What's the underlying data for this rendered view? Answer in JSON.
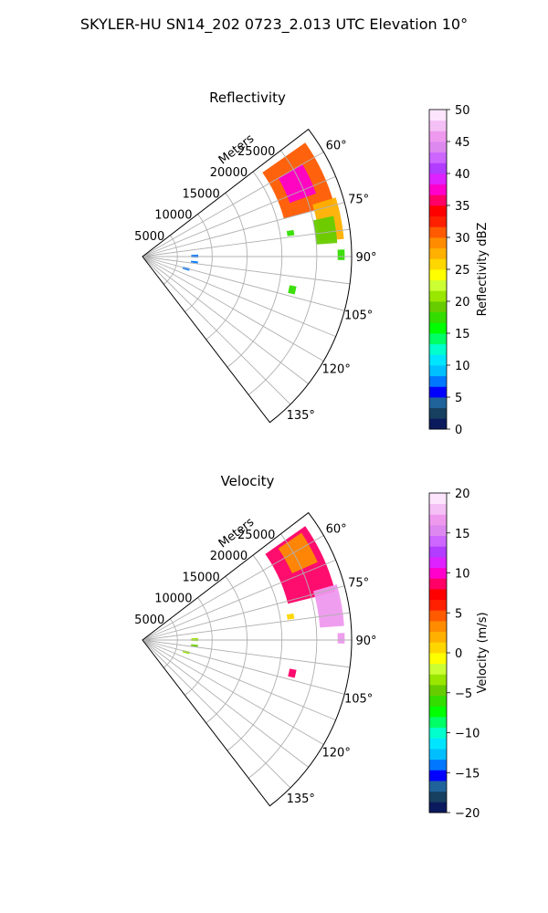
{
  "suptitle": "SKYLER-HU  SN14_202  0723_2.013 UTC Elevation 10°",
  "chart_data": [
    {
      "type": "polar",
      "panel": "reflectivity",
      "title": "Reflectivity",
      "radial_label": "Meters",
      "radial_ticks": [
        5000,
        10000,
        15000,
        20000,
        25000
      ],
      "radial_tick_labels": [
        "5000",
        "10000",
        "15000",
        "20000",
        "25000"
      ],
      "radial_max": 30000,
      "azimuth_range_deg": [
        52.5,
        142.5
      ],
      "azimuth_grid_deg": [
        60,
        67.5,
        75,
        82.5,
        90,
        97.5,
        105,
        112.5,
        120,
        127.5,
        135
      ],
      "azimuth_tick_labels": [
        "60°",
        "75°",
        "90°",
        "105°",
        "120°",
        "135°"
      ],
      "grid": true,
      "colorbar": {
        "label": "Reflectivity dBZ",
        "range": [
          0,
          50
        ],
        "ticks": [
          "0",
          "5",
          "10",
          "15",
          "20",
          "25",
          "30",
          "35",
          "40",
          "45",
          "50"
        ],
        "colors": [
          "#0b1a5c",
          "#173f5f",
          "#20639b",
          "#0000ff",
          "#0077ff",
          "#00bfff",
          "#00e5ff",
          "#00ffcc",
          "#00ff66",
          "#00ff00",
          "#33dd00",
          "#66cc00",
          "#99e600",
          "#ccff33",
          "#ffff00",
          "#ffd700",
          "#ffb000",
          "#ff8c00",
          "#ff5a00",
          "#ff2000",
          "#ff0000",
          "#ff0066",
          "#ff00cc",
          "#dd22ff",
          "#b23cff",
          "#cc66ff",
          "#dd88ee",
          "#ee99ee",
          "#f5c0f5",
          "#fde6fd"
        ]
      },
      "echoes": [
        {
          "az": [
            55,
            75
          ],
          "r": [
            21000,
            28500
          ],
          "dbz": 30
        },
        {
          "az": [
            60,
            70
          ],
          "r": [
            22500,
            26500
          ],
          "dbz": 38
        },
        {
          "az": [
            73,
            85
          ],
          "r": [
            25500,
            29000
          ],
          "dbz": 28
        },
        {
          "az": [
            78,
            86
          ],
          "r": [
            25000,
            28000
          ],
          "dbz": 19
        },
        {
          "az": [
            88,
            91
          ],
          "r": [
            28000,
            29000
          ],
          "dbz": 18
        },
        {
          "az": [
            80,
            82
          ],
          "r": [
            21000,
            22000
          ],
          "dbz": 17
        },
        {
          "az": [
            101,
            104
          ],
          "r": [
            21500,
            22500
          ],
          "dbz": 18
        },
        {
          "az": [
            88,
            91
          ],
          "r": [
            7000,
            8000
          ],
          "dbz": 7
        },
        {
          "az": [
            95,
            97
          ],
          "r": [
            7000,
            8000
          ],
          "dbz": 8
        },
        {
          "az": [
            104,
            107
          ],
          "r": [
            6000,
            7000
          ],
          "dbz": 8
        }
      ]
    },
    {
      "type": "polar",
      "panel": "velocity",
      "title": "Velocity",
      "radial_label": "Meters",
      "radial_ticks": [
        5000,
        10000,
        15000,
        20000,
        25000
      ],
      "radial_tick_labels": [
        "5000",
        "10000",
        "15000",
        "20000",
        "25000"
      ],
      "radial_max": 30000,
      "azimuth_range_deg": [
        52.5,
        142.5
      ],
      "azimuth_grid_deg": [
        60,
        67.5,
        75,
        82.5,
        90,
        97.5,
        105,
        112.5,
        120,
        127.5,
        135
      ],
      "azimuth_tick_labels": [
        "60°",
        "75°",
        "90°",
        "105°",
        "120°",
        "135°"
      ],
      "grid": true,
      "colorbar": {
        "label": "Velocity (m/s)",
        "range": [
          -20,
          20
        ],
        "ticks": [
          "−20",
          "−15",
          "−10",
          "−5",
          "0",
          "5",
          "10",
          "15",
          "20"
        ],
        "colors": [
          "#0b1a5c",
          "#173f5f",
          "#20639b",
          "#0000ff",
          "#0077ff",
          "#00bfff",
          "#00e5ff",
          "#00ffcc",
          "#00ff66",
          "#00ff00",
          "#33dd00",
          "#66cc00",
          "#99e600",
          "#ccff33",
          "#ffff00",
          "#ffd700",
          "#ffb000",
          "#ff8c00",
          "#ff5a00",
          "#ff2000",
          "#ff0000",
          "#ff0066",
          "#ff00cc",
          "#dd22ff",
          "#b23cff",
          "#cc66ff",
          "#dd88ee",
          "#ee99ee",
          "#f5c0f5",
          "#fde6fd"
        ]
      },
      "echoes": [
        {
          "az": [
            55,
            76
          ],
          "r": [
            21500,
            28500
          ],
          "v": 8
        },
        {
          "az": [
            56,
            66
          ],
          "r": [
            23500,
            27500
          ],
          "v": 3
        },
        {
          "az": [
            74,
            86
          ],
          "r": [
            25500,
            29000
          ],
          "v": 17
        },
        {
          "az": [
            88,
            91
          ],
          "r": [
            28000,
            29000
          ],
          "v": 16
        },
        {
          "az": [
            80,
            82
          ],
          "r": [
            21000,
            22000
          ],
          "v": 1
        },
        {
          "az": [
            101,
            104
          ],
          "r": [
            21500,
            22500
          ],
          "v": 9
        },
        {
          "az": [
            88,
            91
          ],
          "r": [
            7000,
            8000
          ],
          "v": -3
        },
        {
          "az": [
            95,
            97
          ],
          "r": [
            7000,
            8000
          ],
          "v": -5
        },
        {
          "az": [
            104,
            107
          ],
          "r": [
            6000,
            7000
          ],
          "v": -4
        }
      ]
    }
  ]
}
